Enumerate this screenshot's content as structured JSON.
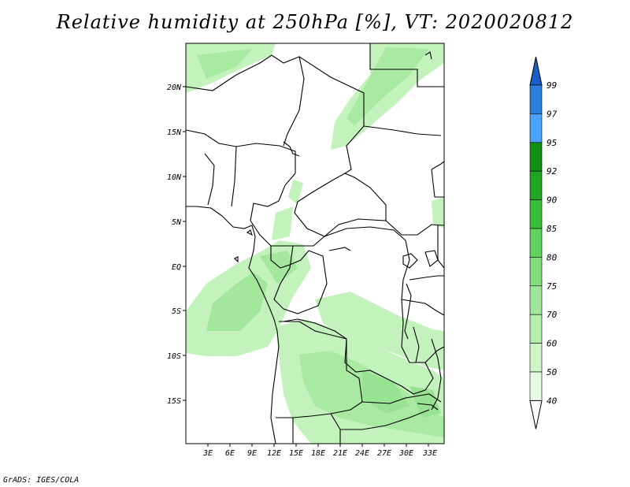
{
  "title": "Relative humidity at 250hPa [%], VT: 2020020812",
  "credit": "GrADS: IGES/COLA",
  "map": {
    "lat_labels": [
      "20N",
      "15N",
      "10N",
      "5N",
      "EQ",
      "5S",
      "10S",
      "15S"
    ],
    "lon_labels": [
      "3E",
      "6E",
      "9E",
      "12E",
      "15E",
      "18E",
      "21E",
      "24E",
      "27E",
      "30E",
      "33E"
    ],
    "fill_colors": {
      "light": "#ccf5c7",
      "mid": "#a8eaa0",
      "dark": "#8fe28a"
    }
  },
  "colorbar": {
    "levels": [
      "40",
      "50",
      "60",
      "70",
      "75",
      "80",
      "85",
      "90",
      "92",
      "95",
      "97",
      "99"
    ],
    "colors": [
      "#ffffff",
      "#e6fbe2",
      "#cdf5c5",
      "#b4eeaa",
      "#9ee799",
      "#82de7c",
      "#5fd35c",
      "#3bbf3b",
      "#22a522",
      "#118f11",
      "#4aa3ff",
      "#2c7fe0",
      "#1a5ec8"
    ]
  }
}
